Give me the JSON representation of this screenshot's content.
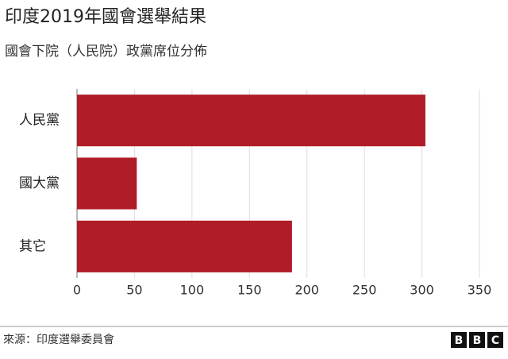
{
  "chart_data": {
    "type": "bar",
    "orientation": "horizontal",
    "title": "印度2019年國會選舉結果",
    "subtitle": "國會下院（人民院）政黨席位分佈",
    "categories": [
      "人民黨",
      "國大黨",
      "其它"
    ],
    "values": [
      303,
      52,
      187
    ],
    "color": "#b01c27",
    "xlim": [
      0,
      350
    ],
    "xticks": [
      0,
      50,
      100,
      150,
      200,
      250,
      300,
      350
    ],
    "grid": true
  },
  "source": "來源：印度選舉委員會",
  "logo": [
    "B",
    "B",
    "C"
  ]
}
